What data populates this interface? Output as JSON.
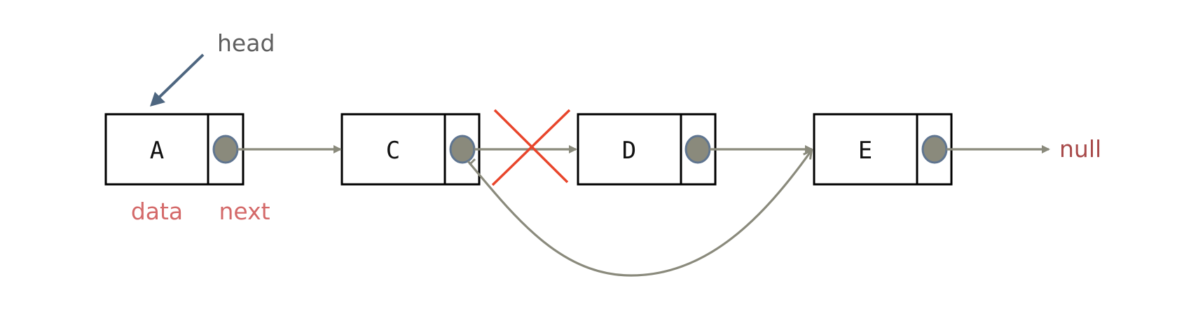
{
  "diagram": {
    "head_label": "head",
    "null_label": "null",
    "data_caption": "data",
    "next_caption": "next",
    "nodes": [
      {
        "label": "A"
      },
      {
        "label": "C"
      },
      {
        "label": "D"
      },
      {
        "label": "E"
      }
    ],
    "colors": {
      "pointer": "#8a8a7c",
      "head_arrow": "#4e6680",
      "cross": "#e8452b",
      "caption": "#d46a6a",
      "null": "#a84a4a"
    }
  }
}
